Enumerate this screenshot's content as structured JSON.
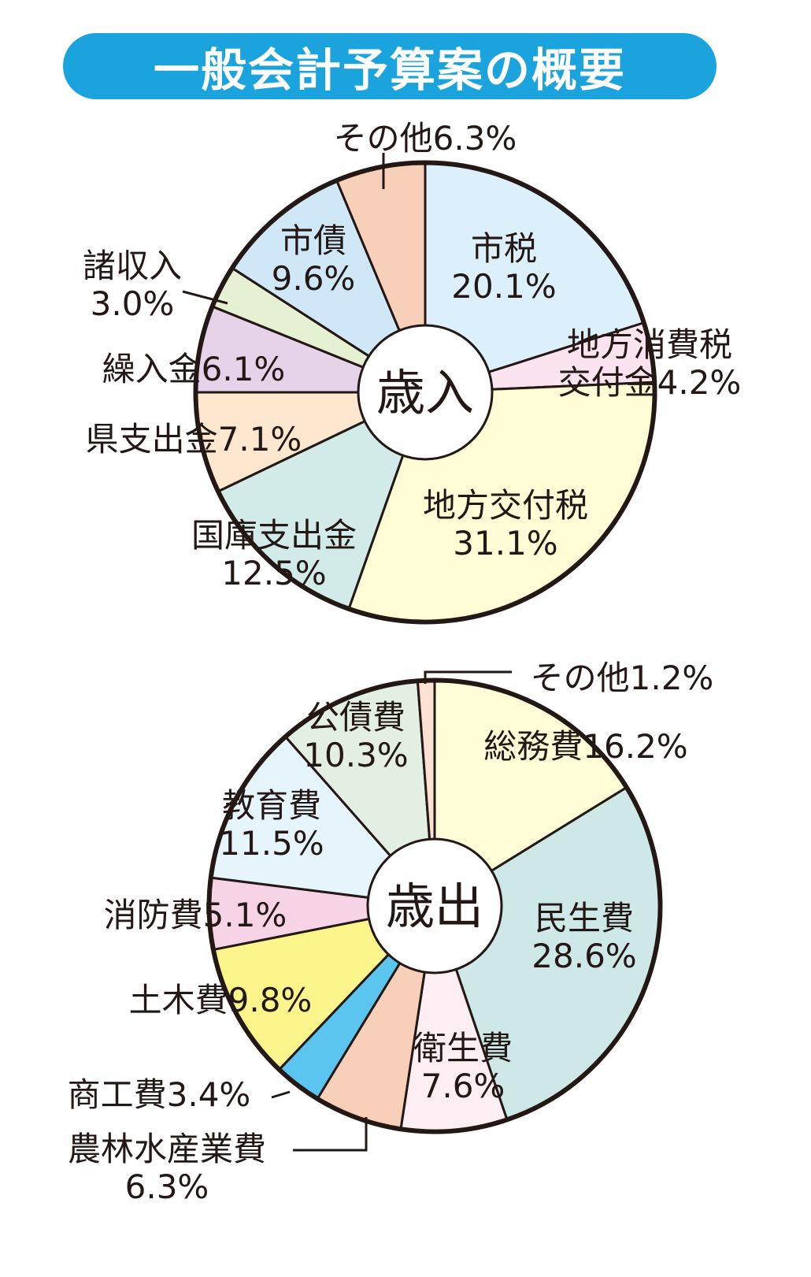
{
  "title": "一般会計予算案の概要",
  "colors": {
    "title_bg": "#1aa3dc",
    "outline": "#231815"
  },
  "chart_data": [
    {
      "type": "pie",
      "center_label": "歳入",
      "unit": "%",
      "slices": [
        {
          "label": "市税",
          "value": 20.1,
          "color": "#dcf0fb"
        },
        {
          "label": "地方消費税交付金",
          "value": 4.2,
          "color": "#fbe3ef"
        },
        {
          "label": "地方交付税",
          "value": 31.1,
          "color": "#fffcd6"
        },
        {
          "label": "国庫支出金",
          "value": 12.5,
          "color": "#d2ebe9"
        },
        {
          "label": "県支出金",
          "value": 7.1,
          "color": "#fde8cf"
        },
        {
          "label": "繰入金",
          "value": 6.1,
          "color": "#e6d3ea"
        },
        {
          "label": "諸収入",
          "value": 3.0,
          "color": "#e6f0d2"
        },
        {
          "label": "市債",
          "value": 9.6,
          "color": "#cfe7f7"
        },
        {
          "label": "その他",
          "value": 6.3,
          "color": "#f8cfb9"
        }
      ],
      "labels": [
        {
          "lines": [
            "市税",
            "20.1%"
          ]
        },
        {
          "lines": [
            "地方消費税",
            "交付金4.2%"
          ]
        },
        {
          "lines": [
            "地方交付税",
            "31.1%"
          ]
        },
        {
          "lines": [
            "国庫支出金",
            "12.5%"
          ]
        },
        {
          "lines": [
            "県支出金7.1%"
          ]
        },
        {
          "lines": [
            "繰入金6.1%"
          ]
        },
        {
          "lines": [
            "諸収入",
            "3.0%"
          ]
        },
        {
          "lines": [
            "市債",
            "9.6%"
          ]
        },
        {
          "lines": [
            "その他6.3%"
          ]
        }
      ]
    },
    {
      "type": "pie",
      "center_label": "歳出",
      "unit": "%",
      "slices": [
        {
          "label": "総務費",
          "value": 16.2,
          "color": "#fffcd8"
        },
        {
          "label": "民生費",
          "value": 28.6,
          "color": "#cde8e6"
        },
        {
          "label": "衛生費",
          "value": 7.6,
          "color": "#fdeef4"
        },
        {
          "label": "農林水産業費",
          "value": 6.3,
          "color": "#f8cfb9"
        },
        {
          "label": "商工費",
          "value": 3.4,
          "color": "#5bc4ef"
        },
        {
          "label": "土木費",
          "value": 9.8,
          "color": "#fbf58c"
        },
        {
          "label": "消防費",
          "value": 5.1,
          "color": "#f6d4e6"
        },
        {
          "label": "教育費",
          "value": 11.5,
          "color": "#e6f4fb"
        },
        {
          "label": "公債費",
          "value": 10.3,
          "color": "#e2efe2"
        },
        {
          "label": "その他",
          "value": 1.2,
          "color": "#fbe0d4"
        }
      ],
      "labels": [
        {
          "lines": [
            "総務費16.2%"
          ]
        },
        {
          "lines": [
            "民生費",
            "28.6%"
          ]
        },
        {
          "lines": [
            "衛生費",
            "7.6%"
          ]
        },
        {
          "lines": [
            "農林水産業費",
            "6.3%"
          ]
        },
        {
          "lines": [
            "商工費3.4%"
          ]
        },
        {
          "lines": [
            "土木費9.8%"
          ]
        },
        {
          "lines": [
            "消防費5.1%"
          ]
        },
        {
          "lines": [
            "教育費",
            "11.5%"
          ]
        },
        {
          "lines": [
            "公債費",
            "10.3%"
          ]
        },
        {
          "lines": [
            "その他1.2%"
          ]
        }
      ]
    }
  ]
}
